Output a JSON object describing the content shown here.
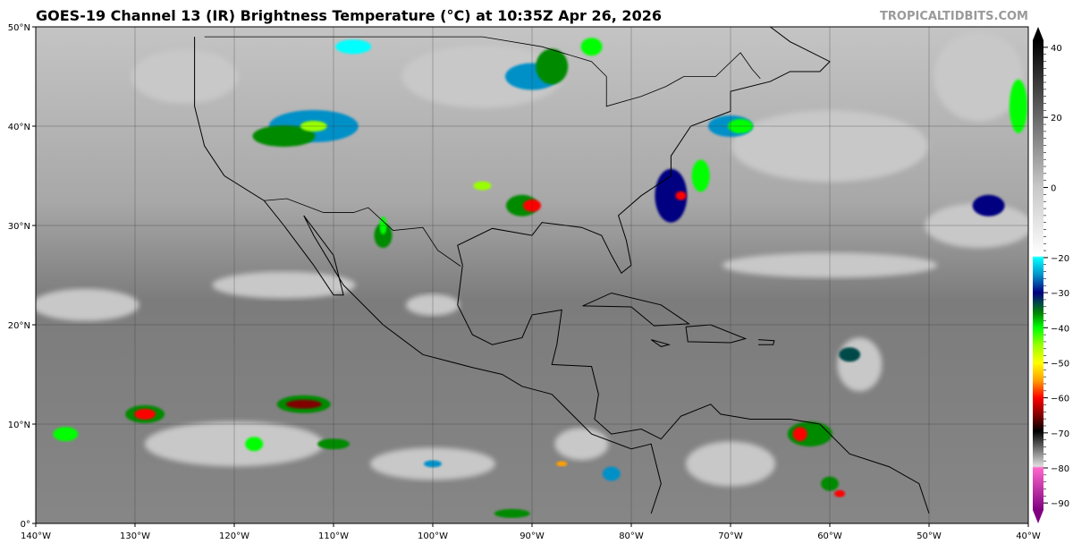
{
  "header": {
    "title": "GOES-19 Channel 13 (IR) Brightness Temperature (°C) at 10:35Z Apr 26, 2026",
    "brand": "TROPICALTIDBITS.COM"
  },
  "map": {
    "projection": "equirectangular",
    "lon_range": [
      -140,
      -40
    ],
    "lat_range": [
      0,
      50
    ],
    "lon_ticks": [
      "140°W",
      "130°W",
      "120°W",
      "110°W",
      "100°W",
      "90°W",
      "80°W",
      "70°W",
      "60°W",
      "50°W",
      "40°W"
    ],
    "lat_ticks": [
      "0°",
      "10°N",
      "20°N",
      "30°N",
      "40°N",
      "50°N"
    ],
    "grid": true
  },
  "colorbar": {
    "range": [
      -90,
      40
    ],
    "tick_labels": [
      "40",
      "20",
      "0",
      "−20",
      "−30",
      "−40",
      "−50",
      "−60",
      "−70",
      "−80",
      "−90"
    ],
    "tick_values": [
      40,
      20,
      0,
      -20,
      -30,
      -40,
      -50,
      -60,
      -70,
      -80,
      -90
    ],
    "extend": "both",
    "stops": [
      {
        "t": 42,
        "c": "#000000"
      },
      {
        "t": 0,
        "c": "#c8c8c8"
      },
      {
        "t": -19.5,
        "c": "#ffffff"
      },
      {
        "t": -20,
        "c": "#00ffff"
      },
      {
        "t": -25,
        "c": "#0090c8"
      },
      {
        "t": -30,
        "c": "#000080"
      },
      {
        "t": -33,
        "c": "#004848"
      },
      {
        "t": -36,
        "c": "#008a00"
      },
      {
        "t": -40,
        "c": "#00ff00"
      },
      {
        "t": -45,
        "c": "#99ff00"
      },
      {
        "t": -50,
        "c": "#ffff00"
      },
      {
        "t": -55,
        "c": "#ffa000"
      },
      {
        "t": -60,
        "c": "#ff0000"
      },
      {
        "t": -65,
        "c": "#800000"
      },
      {
        "t": -69.5,
        "c": "#000000"
      },
      {
        "t": -75,
        "c": "#7a7a7a"
      },
      {
        "t": -79.5,
        "c": "#dddddd"
      },
      {
        "t": -80,
        "c": "#ff66cc"
      },
      {
        "t": -92,
        "c": "#800080"
      }
    ]
  }
}
